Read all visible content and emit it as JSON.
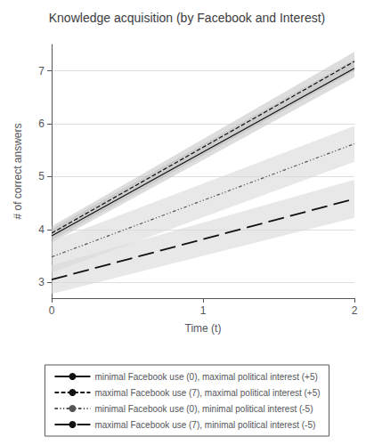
{
  "chart_data": {
    "type": "line",
    "title": "Knowledge acquisition (by Facebook and Interest)",
    "x_label": "Time (t)",
    "y_label": "# of correct answers",
    "x": [
      0,
      2
    ],
    "xlim": [
      0,
      2
    ],
    "ylim": [
      2.7,
      7.5
    ],
    "xticks": [
      0,
      1,
      2
    ],
    "yticks": [
      3,
      4,
      5,
      6,
      7
    ],
    "grid": "y",
    "legend": "bottom",
    "series": [
      {
        "name": "minimal Facebook use (0), maximal political interest (+5)",
        "color": "#111111",
        "line_style": "solid",
        "values": [
          3.88,
          7.05
        ],
        "ci_lower": [
          3.75,
          6.88
        ],
        "ci_upper": [
          4.01,
          7.22
        ],
        "ci_color": "#bbbbbb"
      },
      {
        "name": "maximal Facebook use (7), maximal political interest (+5)",
        "color": "#111111",
        "line_style": "dashed",
        "values": [
          3.93,
          7.18
        ],
        "ci_lower": [
          3.8,
          7.0
        ],
        "ci_upper": [
          4.06,
          7.36
        ],
        "ci_color": "#bbbbbb"
      },
      {
        "name": "minimal Facebook use (0), minimal political interest (-5)",
        "color": "#555555",
        "line_style": "dashdot",
        "values": [
          3.48,
          5.62
        ],
        "ci_lower": [
          3.18,
          5.28
        ],
        "ci_upper": [
          3.78,
          5.96
        ],
        "ci_color": "#d8d8d8"
      },
      {
        "name": "maximal Facebook use (7), minimal political interest (-5)",
        "color": "#111111",
        "line_style": "longdash",
        "values": [
          3.05,
          4.58
        ],
        "ci_lower": [
          2.78,
          4.22
        ],
        "ci_upper": [
          3.32,
          4.94
        ],
        "ci_color": "#d8d8d8"
      }
    ]
  }
}
